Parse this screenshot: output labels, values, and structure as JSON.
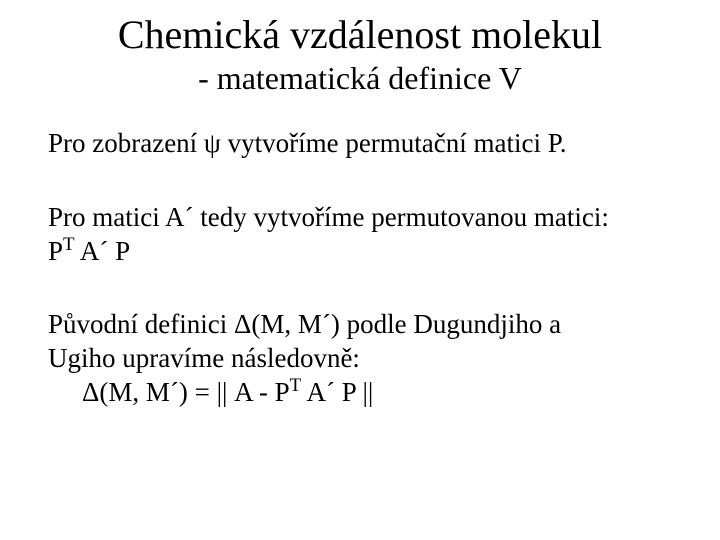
{
  "title": "Chemická vzdálenost molekul",
  "subtitle": "- matematická definice V",
  "para1": "Pro zobrazení ψ vytvoříme permutační matici P.",
  "para2_line1": "Pro matici A´ tedy vytvoříme permutovanou matici:",
  "para2_line2_pre": "P",
  "para2_line2_sup": "T",
  "para2_line2_post": " A´ P",
  "para3_line1": "Původní definici Δ(M, M´) podle Dugundjiho a",
  "para3_line2": "Ugiho upravíme následovně:",
  "para3_formula_pre": "Δ(M, M´) = || A  -  P",
  "para3_formula_sup": "T",
  "para3_formula_post": " A´ P ||",
  "colors": {
    "background": "#ffffff",
    "text": "#000000"
  },
  "fonts": {
    "title_size": 40,
    "subtitle_size": 32,
    "body_size": 27,
    "family": "Times New Roman"
  }
}
